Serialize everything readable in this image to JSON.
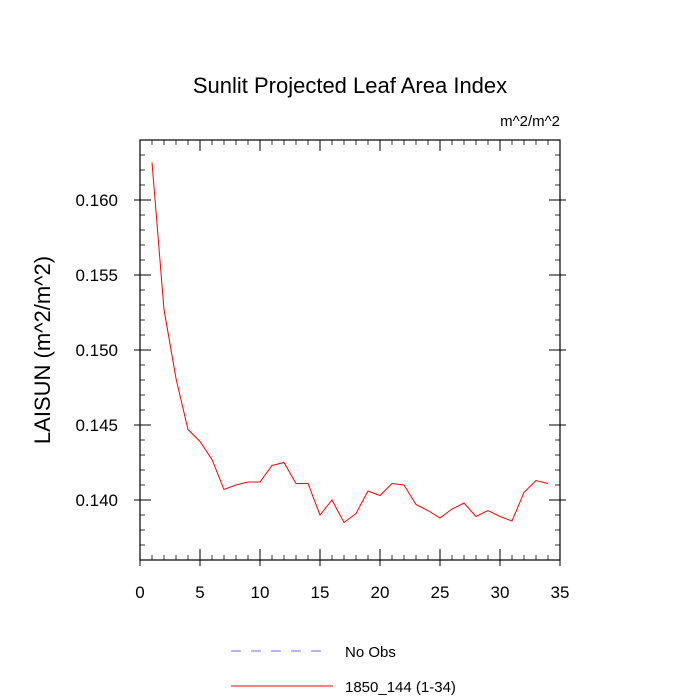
{
  "chart_data": {
    "type": "line",
    "title": "Sunlit Projected Leaf Area Index",
    "units_label": "m^2/m^2",
    "xlabel": "",
    "ylabel": "LAISUN  (m^2/m^2)",
    "xlim": [
      0,
      35
    ],
    "ylim": [
      0.136,
      0.164
    ],
    "x_ticks": [
      0,
      5,
      10,
      15,
      20,
      25,
      30,
      35
    ],
    "x_tick_labels": [
      "0",
      "5",
      "10",
      "15",
      "20",
      "25",
      "30",
      "35"
    ],
    "y_ticks": [
      0.14,
      0.145,
      0.15,
      0.155,
      0.16
    ],
    "y_tick_labels": [
      "0.140",
      "0.145",
      "0.150",
      "0.155",
      "0.160"
    ],
    "x_minor_step": 1,
    "y_minor_step": 0.001,
    "series": [
      {
        "name": "1850_144 (1-34)",
        "color": "#ff0000",
        "style": "solid",
        "x": [
          1,
          2,
          3,
          4,
          5,
          6,
          7,
          8,
          9,
          10,
          11,
          12,
          13,
          14,
          15,
          16,
          17,
          18,
          19,
          20,
          21,
          22,
          23,
          24,
          25,
          26,
          27,
          28,
          29,
          30,
          31,
          32,
          33,
          34
        ],
        "y": [
          0.1625,
          0.1527,
          0.1481,
          0.1447,
          0.1439,
          0.1427,
          0.1407,
          0.141,
          0.1412,
          0.1412,
          0.1423,
          0.1425,
          0.1411,
          0.1411,
          0.139,
          0.14,
          0.1385,
          0.1391,
          0.1406,
          0.1403,
          0.1411,
          0.141,
          0.1397,
          0.1393,
          0.1388,
          0.1394,
          0.1398,
          0.1389,
          0.1393,
          0.1389,
          0.1386,
          0.1405,
          0.1413,
          0.1411
        ]
      }
    ],
    "legend": [
      {
        "label": "No Obs",
        "color": "#6a6aff",
        "style": "dashed"
      },
      {
        "label": "1850_144 (1-34)",
        "color": "#ff0000",
        "style": "solid"
      }
    ],
    "legend_position": "bottom-center"
  }
}
